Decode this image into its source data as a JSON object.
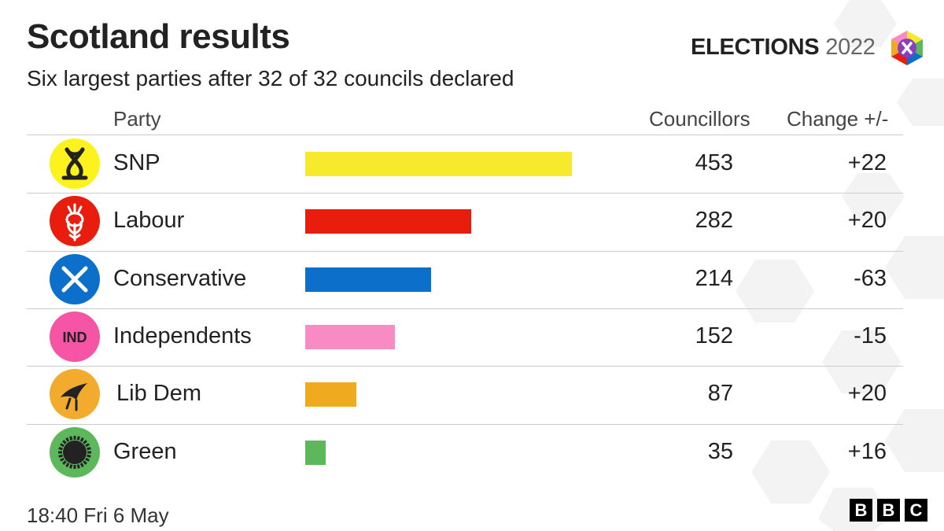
{
  "header": {
    "title": "Scotland results",
    "subtitle": "Six largest parties after 32 of 32 councils declared",
    "brand_word": "ELECTIONS",
    "brand_year": "2022",
    "brand_logo_icon": "elections-x-hexagon-icon"
  },
  "columns": {
    "party": "Party",
    "councillors": "Councillors",
    "change": "Change +/-"
  },
  "chart_data": {
    "type": "bar",
    "orientation": "horizontal",
    "title": "Scotland results",
    "subtitle": "Six largest parties after 32 of 32 councils declared",
    "categories": [
      "SNP",
      "Labour",
      "Conservative",
      "Independents",
      "Lib Dem",
      "Green"
    ],
    "values": [
      453,
      282,
      214,
      152,
      87,
      35
    ],
    "change": [
      "+22",
      "+20",
      "-63",
      "-15",
      "+20",
      "+16"
    ],
    "colors": [
      "#f7ea2c",
      "#e91d0e",
      "#0c6fc9",
      "#f88bc4",
      "#efaa1f",
      "#5db85c"
    ],
    "logo_colors": [
      "#fdf21e",
      "#e91d0e",
      "#0c6fc9",
      "#f654a5",
      "#f2ab2c",
      "#5db85c"
    ],
    "icons": [
      "snp-knot-icon",
      "labour-thistle-icon",
      "conservative-saltire-icon",
      "ind-badge-icon",
      "libdem-bird-icon",
      "green-sun-icon"
    ],
    "grid": false,
    "legend": "none"
  },
  "logo_text": {
    "ind": "IND"
  },
  "footer": {
    "timestamp": "18:40 Fri  6 May",
    "bbc": [
      "B",
      "B",
      "C"
    ]
  }
}
